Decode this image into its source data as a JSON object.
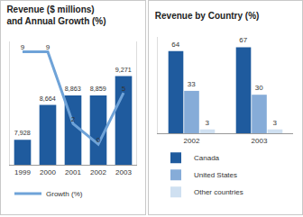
{
  "chart_data": [
    {
      "type": "bar",
      "title": "Revenue ($ millions)\nand Annual Growth (%)",
      "categories": [
        "1999",
        "2000",
        "2001",
        "2002",
        "2003"
      ],
      "series": [
        {
          "type": "bar",
          "color": "#1f5b9e",
          "values": [
            7928,
            8664,
            8863,
            8859,
            9271
          ],
          "value_labels": [
            "7,928",
            "8,664",
            "8,863",
            "8,859",
            "9,271"
          ]
        },
        {
          "name": "Growth (%)",
          "type": "line",
          "axis": "y2",
          "color": "#6fa3d8",
          "values": [
            9,
            9,
            2,
            0,
            5
          ]
        }
      ],
      "ylim": [
        7400,
        10000
      ],
      "y2lim": [
        -2,
        10
      ],
      "data_labels": true,
      "tick_labels": "x",
      "grid": false,
      "legend": "bottom-left"
    },
    {
      "type": "bar",
      "title": "Revenue by Country (%)",
      "categories": [
        "2002",
        "2003"
      ],
      "series": [
        {
          "name": "Canada",
          "color": "#1f5b9e",
          "values": [
            64,
            67
          ]
        },
        {
          "name": "United States",
          "color": "#86acd8",
          "values": [
            33,
            30
          ]
        },
        {
          "name": "Other countries",
          "color": "#cfe0f1",
          "values": [
            3,
            3
          ]
        }
      ],
      "ylim": [
        0,
        75
      ],
      "data_labels": true,
      "tick_labels": "x",
      "grid": false,
      "legend": "bottom-left"
    }
  ]
}
